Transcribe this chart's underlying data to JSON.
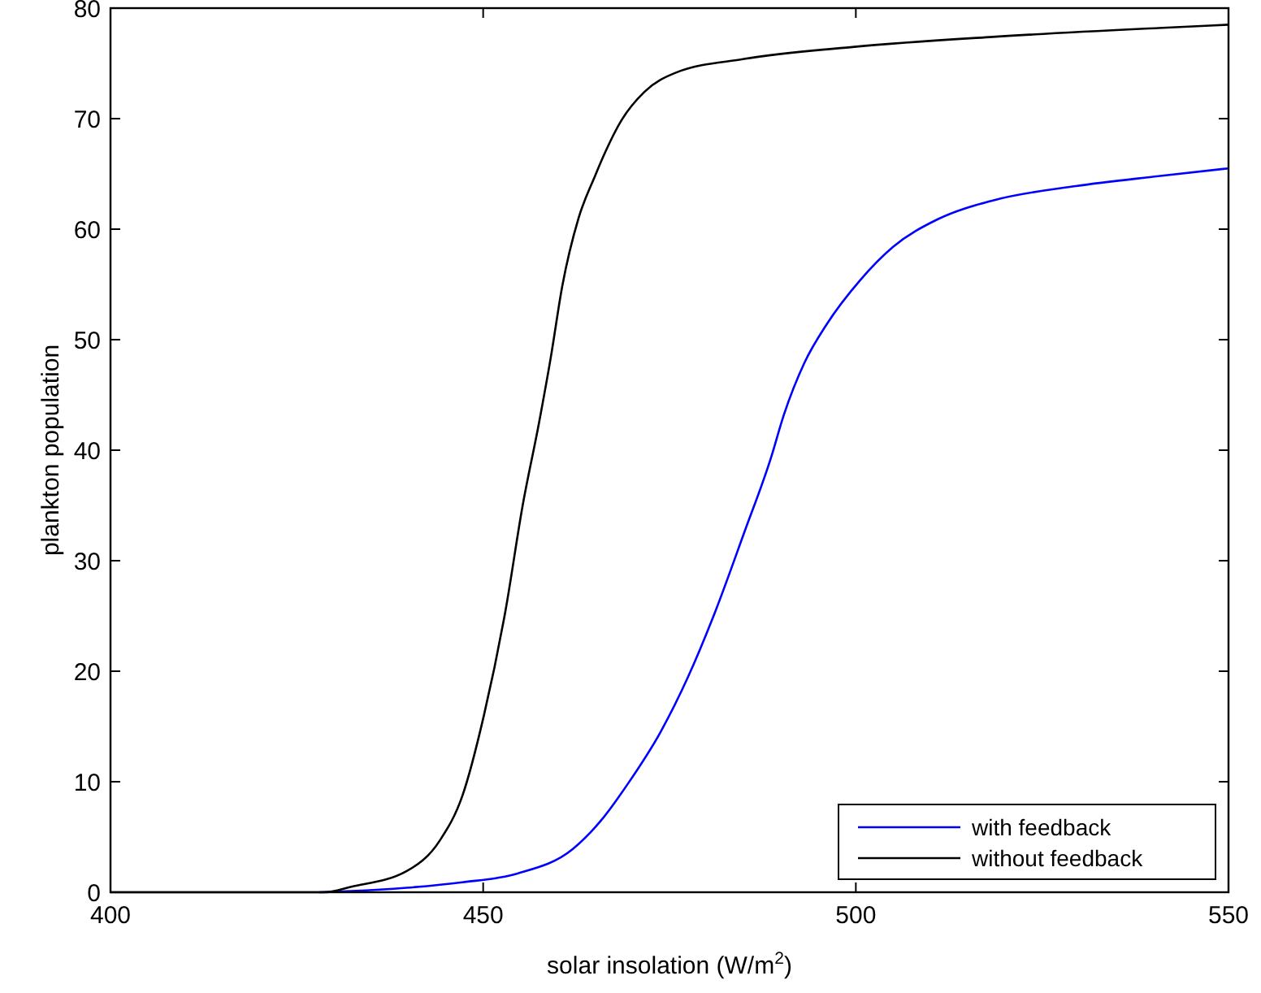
{
  "chart_data": {
    "type": "line",
    "xlabel": "solar insolation (W/m$^{2}$)",
    "ylabel": "plankton population",
    "xlim": [
      400,
      550
    ],
    "ylim": [
      0,
      80
    ],
    "xticks": [
      400,
      450,
      500,
      550
    ],
    "yticks": [
      0,
      10,
      20,
      30,
      40,
      50,
      60,
      70,
      80
    ],
    "grid": false,
    "legend": "bottom right",
    "line_style": "solid",
    "marker": "none",
    "series": [
      {
        "name": "with feedback",
        "color": "#0000ff",
        "x": [
          428,
          432.3,
          439.7,
          447.2,
          454.6,
          462,
          465.7,
          469.5,
          473.8,
          477.5,
          481.2,
          485,
          488.7,
          490.2,
          493.1,
          496.1,
          500.6,
          505,
          511,
          518.4,
          529.5,
          540.6,
          550
        ],
        "values": [
          0,
          0.1,
          0.4,
          0.9,
          1.7,
          3.9,
          6.4,
          9.9,
          14.5,
          19.5,
          25.5,
          32.5,
          39.5,
          42.9,
          47.9,
          51.4,
          55.4,
          58.4,
          60.9,
          62.6,
          63.9,
          64.8,
          65.5
        ]
      },
      {
        "name": "without feedback",
        "color": "#000000",
        "x": [
          400,
          420,
          428.6,
          432.3,
          439.7,
          444.2,
          447.2,
          450.1,
          453,
          455.3,
          457.5,
          459.1,
          460.6,
          462.8,
          465,
          466.4,
          468.6,
          471.6,
          476,
          485,
          499.8,
          518.4,
          540.6,
          550
        ],
        "values": [
          0,
          0,
          0,
          0.5,
          1.9,
          4.7,
          8.7,
          16,
          25.5,
          35,
          42.5,
          48.5,
          54.8,
          61,
          64.8,
          67,
          69.9,
          72.4,
          74.2,
          75.4,
          76.5,
          77.4,
          78.2,
          78.5
        ]
      }
    ]
  }
}
